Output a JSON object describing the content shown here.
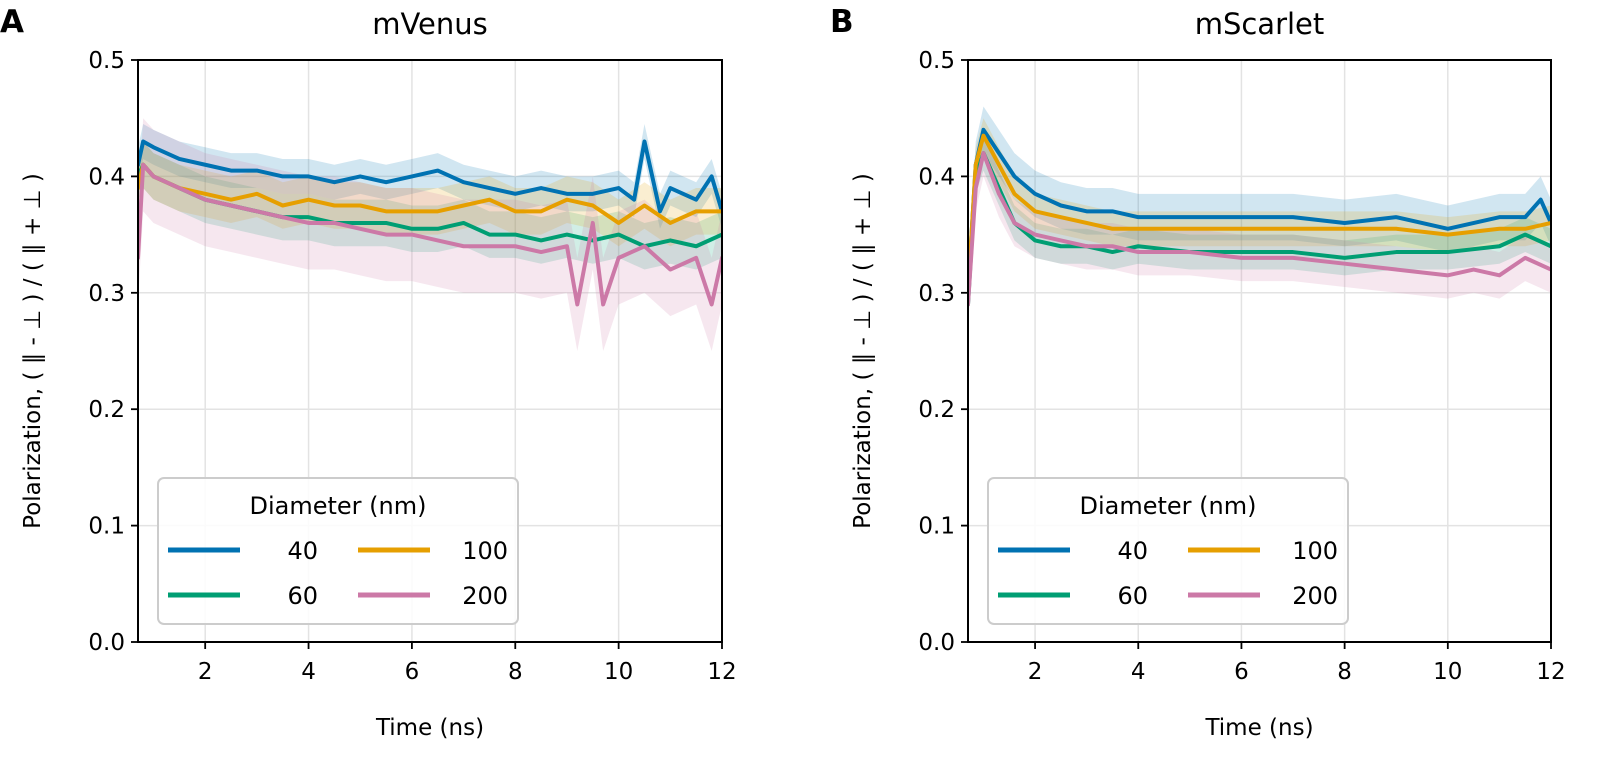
{
  "chart_data": [
    {
      "type": "line",
      "panel_letter": "A",
      "title": "mVenus",
      "xlabel": "Time (ns)",
      "ylabel": "Polarization, ( ∥ - ⊥ ) / ( ∥ + ⊥ )",
      "xlim": [
        0.7,
        12
      ],
      "ylim": [
        0.0,
        0.5
      ],
      "xticks": [
        2,
        4,
        6,
        8,
        10,
        12
      ],
      "xtick_labels": [
        "2",
        "4",
        "6",
        "8",
        "10",
        "12"
      ],
      "yticks": [
        0.0,
        0.1,
        0.2,
        0.3,
        0.4,
        0.5
      ],
      "ytick_labels": [
        "0.0",
        "0.1",
        "0.2",
        "0.3",
        "0.4",
        "0.5"
      ],
      "grid": true,
      "legend": {
        "title": "Diameter (nm)",
        "position": "lower-left",
        "ncol": 2,
        "entries": [
          "40",
          "100",
          "60",
          "200"
        ]
      },
      "series": [
        {
          "name": "40",
          "color": "#0072B2",
          "x": [
            0.7,
            0.8,
            1.0,
            1.5,
            2.0,
            2.5,
            3.0,
            3.5,
            4.0,
            4.5,
            5.0,
            5.5,
            6.0,
            6.5,
            7.0,
            7.5,
            8.0,
            8.5,
            9.0,
            9.5,
            10.0,
            10.3,
            10.5,
            10.8,
            11.0,
            11.5,
            11.8,
            12.0
          ],
          "y": [
            0.41,
            0.43,
            0.425,
            0.415,
            0.41,
            0.405,
            0.405,
            0.4,
            0.4,
            0.395,
            0.4,
            0.395,
            0.4,
            0.405,
            0.395,
            0.39,
            0.385,
            0.39,
            0.385,
            0.385,
            0.39,
            0.38,
            0.43,
            0.37,
            0.39,
            0.38,
            0.4,
            0.37
          ],
          "band": 0.015
        },
        {
          "name": "60",
          "color": "#009E73",
          "x": [
            0.7,
            0.8,
            1.0,
            1.5,
            2.0,
            2.5,
            3.0,
            3.5,
            4.0,
            4.5,
            5.0,
            5.5,
            6.0,
            6.5,
            7.0,
            7.5,
            8.0,
            8.5,
            9.0,
            9.5,
            10.0,
            10.5,
            11.0,
            11.5,
            12.0
          ],
          "y": [
            0.4,
            0.41,
            0.4,
            0.39,
            0.38,
            0.375,
            0.37,
            0.365,
            0.365,
            0.36,
            0.36,
            0.36,
            0.355,
            0.355,
            0.36,
            0.35,
            0.35,
            0.345,
            0.35,
            0.345,
            0.35,
            0.34,
            0.345,
            0.34,
            0.35
          ],
          "band": 0.02
        },
        {
          "name": "100",
          "color": "#E69F00",
          "x": [
            0.7,
            0.8,
            1.0,
            1.5,
            2.0,
            2.5,
            3.0,
            3.5,
            4.0,
            4.5,
            5.0,
            5.5,
            6.0,
            6.5,
            7.0,
            7.5,
            8.0,
            8.5,
            9.0,
            9.5,
            10.0,
            10.5,
            11.0,
            11.5,
            12.0
          ],
          "y": [
            0.39,
            0.41,
            0.4,
            0.39,
            0.385,
            0.38,
            0.385,
            0.375,
            0.38,
            0.375,
            0.375,
            0.37,
            0.37,
            0.37,
            0.375,
            0.38,
            0.37,
            0.37,
            0.38,
            0.375,
            0.36,
            0.375,
            0.36,
            0.37,
            0.37
          ],
          "band": 0.02
        },
        {
          "name": "200",
          "color": "#CC79A7",
          "x": [
            0.7,
            0.8,
            1.0,
            1.5,
            2.0,
            2.5,
            3.0,
            3.5,
            4.0,
            4.5,
            5.0,
            5.5,
            6.0,
            6.5,
            7.0,
            7.5,
            8.0,
            8.5,
            9.0,
            9.2,
            9.5,
            9.7,
            10.0,
            10.5,
            11.0,
            11.5,
            11.8,
            12.0
          ],
          "y": [
            0.33,
            0.41,
            0.4,
            0.39,
            0.38,
            0.375,
            0.37,
            0.365,
            0.36,
            0.36,
            0.355,
            0.35,
            0.35,
            0.345,
            0.34,
            0.34,
            0.34,
            0.335,
            0.34,
            0.29,
            0.36,
            0.29,
            0.33,
            0.34,
            0.32,
            0.33,
            0.29,
            0.33
          ],
          "band": 0.04
        }
      ]
    },
    {
      "type": "line",
      "panel_letter": "B",
      "title": "mScarlet",
      "xlabel": "Time (ns)",
      "ylabel": "Polarization, ( ∥ - ⊥ ) / ( ∥ + ⊥ )",
      "xlim": [
        0.7,
        12
      ],
      "ylim": [
        0.0,
        0.5
      ],
      "xticks": [
        2,
        4,
        6,
        8,
        10,
        12
      ],
      "xtick_labels": [
        "2",
        "4",
        "6",
        "8",
        "10",
        "12"
      ],
      "yticks": [
        0.0,
        0.1,
        0.2,
        0.3,
        0.4,
        0.5
      ],
      "ytick_labels": [
        "0.0",
        "0.1",
        "0.2",
        "0.3",
        "0.4",
        "0.5"
      ],
      "grid": true,
      "legend": {
        "title": "Diameter (nm)",
        "position": "lower-left",
        "ncol": 2,
        "entries": [
          "40",
          "100",
          "60",
          "200"
        ]
      },
      "series": [
        {
          "name": "40",
          "color": "#0072B2",
          "x": [
            0.7,
            0.85,
            1.0,
            1.3,
            1.6,
            2.0,
            2.5,
            3.0,
            3.5,
            4.0,
            5.0,
            6.0,
            7.0,
            8.0,
            9.0,
            10.0,
            11.0,
            11.5,
            11.8,
            12.0
          ],
          "y": [
            0.3,
            0.41,
            0.44,
            0.42,
            0.4,
            0.385,
            0.375,
            0.37,
            0.37,
            0.365,
            0.365,
            0.365,
            0.365,
            0.36,
            0.365,
            0.355,
            0.365,
            0.365,
            0.38,
            0.36
          ],
          "band": 0.02
        },
        {
          "name": "60",
          "color": "#009E73",
          "x": [
            0.7,
            0.85,
            1.0,
            1.3,
            1.6,
            2.0,
            2.5,
            3.0,
            3.5,
            4.0,
            5.0,
            6.0,
            7.0,
            8.0,
            9.0,
            10.0,
            11.0,
            11.5,
            12.0
          ],
          "y": [
            0.29,
            0.4,
            0.42,
            0.39,
            0.36,
            0.345,
            0.34,
            0.34,
            0.335,
            0.34,
            0.335,
            0.335,
            0.335,
            0.33,
            0.335,
            0.335,
            0.34,
            0.35,
            0.34
          ],
          "band": 0.015
        },
        {
          "name": "100",
          "color": "#E69F00",
          "x": [
            0.7,
            0.85,
            1.0,
            1.3,
            1.6,
            2.0,
            2.5,
            3.0,
            3.5,
            4.0,
            5.0,
            6.0,
            7.0,
            8.0,
            9.0,
            10.0,
            11.0,
            11.5,
            12.0
          ],
          "y": [
            0.3,
            0.41,
            0.435,
            0.41,
            0.385,
            0.37,
            0.365,
            0.36,
            0.355,
            0.355,
            0.355,
            0.355,
            0.355,
            0.355,
            0.355,
            0.35,
            0.355,
            0.355,
            0.36
          ],
          "band": 0.015
        },
        {
          "name": "200",
          "color": "#CC79A7",
          "x": [
            0.7,
            0.85,
            1.0,
            1.3,
            1.6,
            2.0,
            2.5,
            3.0,
            3.5,
            4.0,
            5.0,
            6.0,
            7.0,
            8.0,
            9.0,
            10.0,
            10.5,
            11.0,
            11.5,
            12.0
          ],
          "y": [
            0.29,
            0.39,
            0.42,
            0.385,
            0.36,
            0.35,
            0.345,
            0.34,
            0.34,
            0.335,
            0.335,
            0.33,
            0.33,
            0.325,
            0.32,
            0.315,
            0.32,
            0.315,
            0.33,
            0.32
          ],
          "band": 0.02
        }
      ]
    }
  ]
}
